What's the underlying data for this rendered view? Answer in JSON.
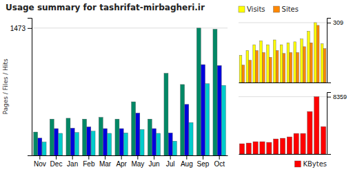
{
  "chart_data": [
    {
      "type": "bar",
      "title": "Usage summary for tashrifat-mirbagheri.ir",
      "y_label": "Pages / Files / Hits",
      "categories": [
        "Nov",
        "Dec",
        "Jan",
        "Feb",
        "Mar",
        "Apr",
        "May",
        "Jun",
        "Jul",
        "Aug",
        "Sep",
        "Oct"
      ],
      "series": [
        {
          "color": "#008866",
          "values": [
            270,
            420,
            430,
            420,
            440,
            420,
            620,
            420,
            950,
            820,
            1473,
            1460
          ]
        },
        {
          "color": "#0000dd",
          "values": [
            200,
            310,
            315,
            330,
            310,
            310,
            490,
            310,
            260,
            590,
            1050,
            1040
          ]
        },
        {
          "color": "#00cccc",
          "values": [
            155,
            255,
            265,
            280,
            255,
            260,
            300,
            255,
            165,
            380,
            830,
            810
          ]
        }
      ],
      "ylim": [
        0,
        1590.84
      ],
      "yticks": [
        1473
      ],
      "grid": true
    },
    {
      "type": "bar",
      "categories": [
        null,
        null,
        null,
        null,
        null,
        null,
        null,
        null,
        null,
        null,
        null,
        null,
        null
      ],
      "series": [
        {
          "name": "Visits",
          "color": "#ffff00",
          "values": [
            140,
            165,
            195,
            215,
            195,
            220,
            195,
            205,
            210,
            225,
            265,
            309,
            200
          ]
        },
        {
          "name": "Sites",
          "color": "#ff8800",
          "values": [
            90,
            115,
            165,
            155,
            130,
            165,
            150,
            155,
            155,
            185,
            205,
            295,
            175
          ]
        }
      ],
      "ylim": [
        0,
        333.72
      ],
      "yticks": [
        309
      ],
      "grid": true,
      "legend": "top",
      "tick_labels": "y"
    },
    {
      "type": "bar",
      "categories": [
        null,
        null,
        null,
        null,
        null,
        null,
        null,
        null,
        null,
        null,
        null,
        null,
        null
      ],
      "series": [
        {
          "name": "KBytes",
          "color": "#ff0000",
          "values": [
            1500,
            1600,
            1800,
            1800,
            1700,
            2200,
            2300,
            2500,
            3000,
            3000,
            6200,
            8359,
            4000
          ]
        }
      ],
      "ylim": [
        0,
        9027.72
      ],
      "yticks": [
        8359
      ],
      "grid": true,
      "legend": "lower right",
      "tick_labels": "y"
    }
  ]
}
